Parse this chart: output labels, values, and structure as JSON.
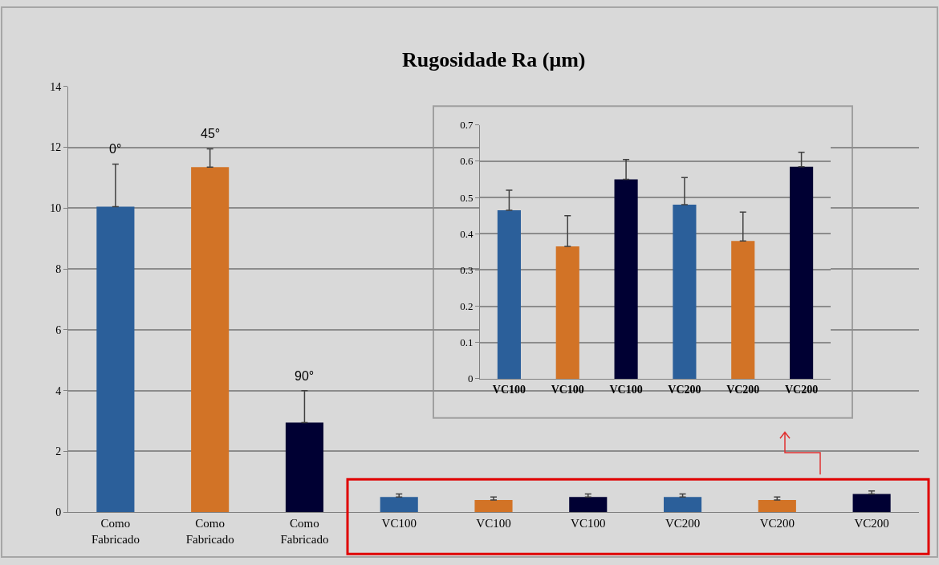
{
  "chart_data": [
    {
      "type": "bar",
      "title": "Rugosidade Ra (μm)",
      "categories": [
        "Como Fabricado",
        "Como Fabricado",
        "Como Fabricado",
        "VC100",
        "VC100",
        "VC100",
        "VC200",
        "VC200",
        "VC200"
      ],
      "values": [
        10.05,
        11.35,
        2.95,
        0.5,
        0.4,
        0.5,
        0.5,
        0.4,
        0.6
      ],
      "colors": [
        "#2b5f9a",
        "#d27326",
        "#000033",
        "#2b5f9a",
        "#d27326",
        "#000033",
        "#2b5f9a",
        "#d27326",
        "#000033"
      ],
      "errors": [
        1.4,
        0.6,
        1.05,
        0.1,
        0.1,
        0.1,
        0.1,
        0.1,
        0.1
      ],
      "annotations": [
        "0°",
        "45°",
        "90°"
      ],
      "ylim": [
        0,
        14
      ],
      "yticks": [
        0,
        2,
        4,
        6,
        8,
        10,
        12,
        14
      ],
      "grid": "y"
    },
    {
      "type": "bar",
      "categories": [
        "VC100",
        "VC100",
        "VC100",
        "VC200",
        "VC200",
        "VC200"
      ],
      "values": [
        0.465,
        0.365,
        0.55,
        0.48,
        0.38,
        0.585
      ],
      "colors": [
        "#2b5f9a",
        "#d27326",
        "#000033",
        "#2b5f9a",
        "#d27326",
        "#000033"
      ],
      "errors": [
        0.055,
        0.085,
        0.055,
        0.075,
        0.08,
        0.04
      ],
      "ylim": [
        0,
        0.7
      ],
      "yticks": [
        0,
        0.1,
        0.2,
        0.3,
        0.4,
        0.5,
        0.6,
        0.7
      ],
      "grid": "y"
    }
  ]
}
